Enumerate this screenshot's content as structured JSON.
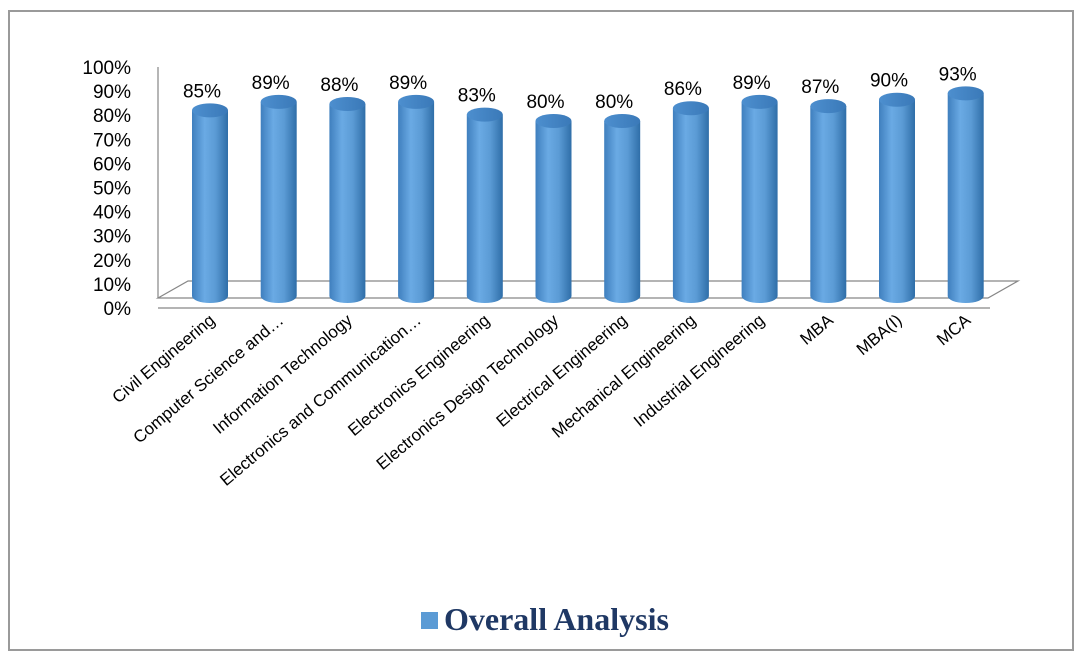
{
  "chart_data": {
    "type": "bar",
    "style": "3d-cylinder",
    "categories": [
      "Civil Engineering",
      "Computer Science and…",
      "Information Technology",
      "Electronics and Communication…",
      "Electronics Engineering",
      "Electronics Design Technology",
      "Electrical Engineering",
      "Mechanical Engineering",
      "Industrial Engineering",
      "MBA",
      "MBA(I)",
      "MCA"
    ],
    "series": [
      {
        "name": "Overall Analysis",
        "values": [
          85,
          89,
          88,
          89,
          83,
          80,
          80,
          86,
          89,
          87,
          90,
          93
        ],
        "labels": [
          "85%",
          "89%",
          "88%",
          "89%",
          "83%",
          "80%",
          "80%",
          "86%",
          "89%",
          "87%",
          "90%",
          "93%"
        ]
      }
    ],
    "yticks": [
      "0%",
      "10%",
      "20%",
      "30%",
      "40%",
      "50%",
      "60%",
      "70%",
      "80%",
      "90%",
      "100%"
    ],
    "ylim": [
      0,
      100
    ],
    "legend_position": "bottom",
    "colors": {
      "bar": "#5b9bd5",
      "bar_dark": "#2f6ea8",
      "bar_light": "#8fc0ec"
    }
  }
}
